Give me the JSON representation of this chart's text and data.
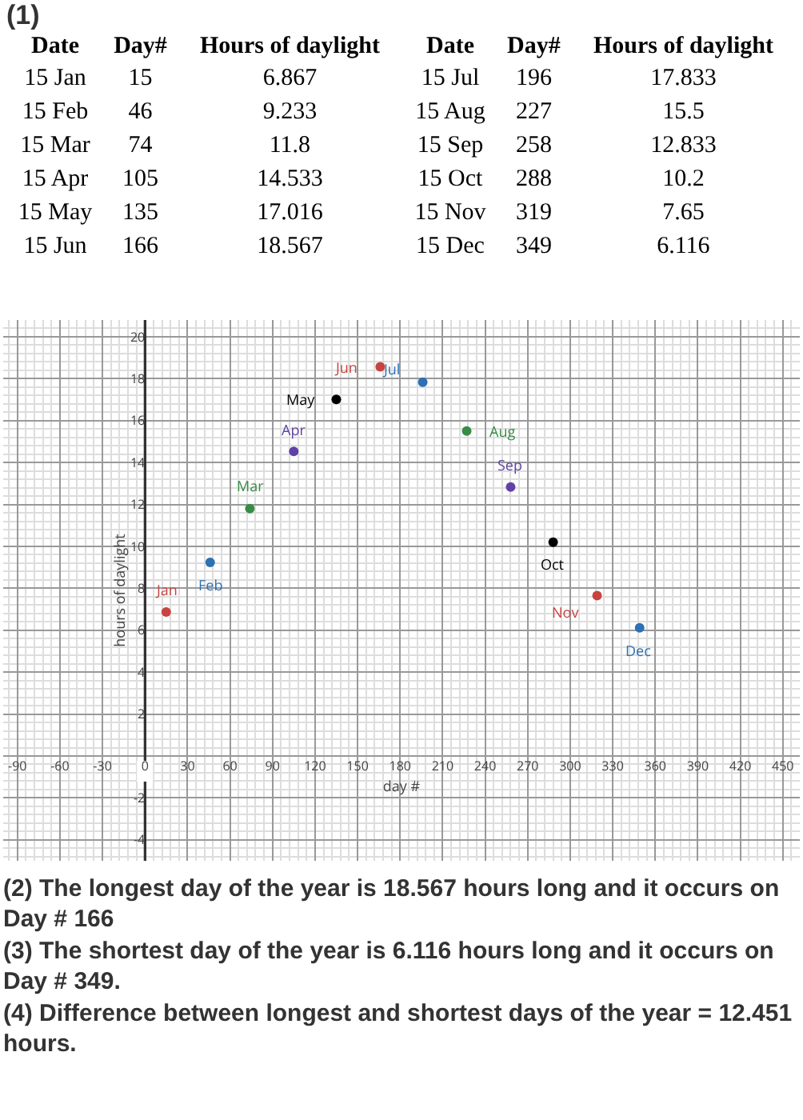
{
  "chart_data": [
    {
      "type": "other",
      "title": "(1)",
      "annotations": [
        "Date",
        "Day#",
        "Hours of daylight",
        "Date",
        "Day#",
        "Hours of daylight",
        "15 Jan",
        "15",
        "6.867",
        "15 Jul",
        "196",
        "17.833",
        "15 Feb",
        "46",
        "9.233",
        "15 Aug",
        "227",
        "15.5",
        "15 Mar",
        "74",
        "11.8",
        "15 Sep",
        "258",
        "12.833",
        "15 Apr",
        "105",
        "14.533",
        "15 Oct",
        "288",
        "10.2",
        "15 May",
        "135",
        "17.016",
        "15 Nov",
        "319",
        "7.65",
        "15 Jun",
        "166",
        "18.567",
        "15 Dec",
        "349",
        "6.116"
      ]
    },
    {
      "type": "scatter",
      "xlabel": "day #",
      "ylabel": "hours of daylight",
      "x": [
        15,
        46,
        74,
        105,
        135,
        166,
        196,
        227,
        258,
        288,
        319,
        349
      ],
      "values": [
        6.867,
        9.233,
        11.8,
        14.533,
        17.016,
        18.567,
        17.833,
        15.5,
        12.833,
        10.2,
        7.65,
        6.116
      ],
      "colors": [
        "#c74440",
        "#2d70b3",
        "#388c46",
        "#6042a6",
        "#000000",
        "#c74440",
        "#2d70b3",
        "#388c46",
        "#6042a6",
        "#000000",
        "#c74440",
        "#2d70b3"
      ],
      "xlim": [
        -100,
        462
      ],
      "ylim": [
        -5,
        20.8
      ],
      "xticks": [
        -90,
        -60,
        -30,
        0,
        30,
        60,
        90,
        120,
        150,
        180,
        210,
        240,
        270,
        300,
        330,
        360,
        390,
        420,
        450
      ],
      "yticks": [
        -4,
        -2,
        {
          "value": 0,
          "label": null
        },
        2,
        4,
        6,
        8,
        10,
        12,
        14,
        16,
        18,
        20
      ],
      "grid": true,
      "marker": "circle",
      "annotations": [
        {
          "text": "Jan",
          "x": 15,
          "y": 6.867
        },
        {
          "text": "Feb",
          "x": 46,
          "y": 9.233
        },
        {
          "text": "Mar",
          "x": 74,
          "y": 11.8
        },
        {
          "text": "Apr",
          "x": 105,
          "y": 14.533
        },
        {
          "text": "May",
          "x": 135,
          "y": 17.016
        },
        {
          "text": "Jun",
          "x": 166,
          "y": 18.567
        },
        {
          "text": "Jul",
          "x": 196,
          "y": 17.833
        },
        {
          "text": "Aug",
          "x": 227,
          "y": 15.5
        },
        {
          "text": "Sep",
          "x": 258,
          "y": 12.833
        },
        {
          "text": "Oct",
          "x": 288,
          "y": 10.2
        },
        {
          "text": "Nov",
          "x": 319,
          "y": 7.65
        },
        {
          "text": "Dec",
          "x": 349,
          "y": 6.116
        },
        "(2) The longest day of the year is 18.567 hours long and it occurs on Day # 166",
        "(3) The shortest day of the year is 6.116 hours long and it occurs on Day # 349.",
        "(4) Difference between longest and shortest days of the year = 12.451 hours."
      ]
    }
  ]
}
